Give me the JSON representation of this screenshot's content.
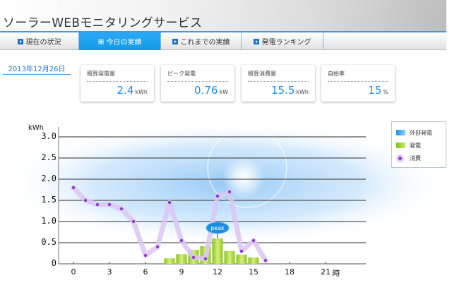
{
  "header": {
    "title": "ソーラーWEBモニタリングサービス"
  },
  "tabs": [
    {
      "label": "現在の状況",
      "active": false
    },
    {
      "label": "今日の実績",
      "active": true
    },
    {
      "label": "これまでの実績",
      "active": false
    },
    {
      "label": "発電ランキング",
      "active": false
    }
  ],
  "date": "2013年12月26日",
  "stats": [
    {
      "label": "積算発電量",
      "value": "2.4",
      "unit": "kWh"
    },
    {
      "label": "ピーク発電",
      "value": "0.76",
      "unit": "kW"
    },
    {
      "label": "積算消費量",
      "value": "15.5",
      "unit": "kWh"
    },
    {
      "label": "自給率",
      "value": "15",
      "unit": "%"
    }
  ],
  "legend": {
    "items": [
      {
        "label": "外部発電",
        "color": "#1f8ee6"
      },
      {
        "label": "発電",
        "color": "#9ed238"
      },
      {
        "label": "消費",
        "color": "#8a3cc9"
      }
    ]
  },
  "peak_label": "peak",
  "chart_data": {
    "type": "bar",
    "title": "",
    "xlabel": "時",
    "ylabel": "kWh",
    "ylim": [
      0,
      3.0
    ],
    "yticks": [
      "0",
      "0.5",
      "1.0",
      "1.5",
      "2.0",
      "2.5",
      "3.0"
    ],
    "xticks": [
      "0",
      "3",
      "6",
      "9",
      "12",
      "15",
      "18",
      "21"
    ],
    "x_unit_label": "時",
    "grid": true,
    "legend_position": "right",
    "hours": [
      0,
      1,
      2,
      3,
      4,
      5,
      6,
      7,
      8,
      9,
      10,
      11,
      12,
      13,
      14,
      15,
      16
    ],
    "series": [
      {
        "name": "発電",
        "type": "bar",
        "color": "#9ed238",
        "x": [
          8,
          9,
          10,
          11,
          12,
          13,
          14,
          15
        ],
        "values": [
          0.13,
          0.23,
          0.33,
          0.42,
          0.6,
          0.3,
          0.22,
          0.15
        ]
      },
      {
        "name": "消費",
        "type": "line",
        "color": "#8a3cc9",
        "x": [
          0,
          1,
          2,
          3,
          4,
          5,
          6,
          7,
          8,
          9,
          10,
          11,
          12,
          13,
          14,
          15,
          16
        ],
        "values": [
          1.8,
          1.5,
          1.4,
          1.4,
          1.3,
          1.0,
          0.2,
          0.4,
          1.45,
          0.55,
          0.15,
          0.12,
          1.6,
          1.7,
          0.3,
          0.55,
          0.08
        ]
      },
      {
        "name": "外部発電",
        "type": "bar",
        "color": "#1f8ee6",
        "x": [],
        "values": []
      }
    ],
    "annotations": [
      {
        "text": "peak",
        "x": 12,
        "y": 0.6
      }
    ]
  }
}
